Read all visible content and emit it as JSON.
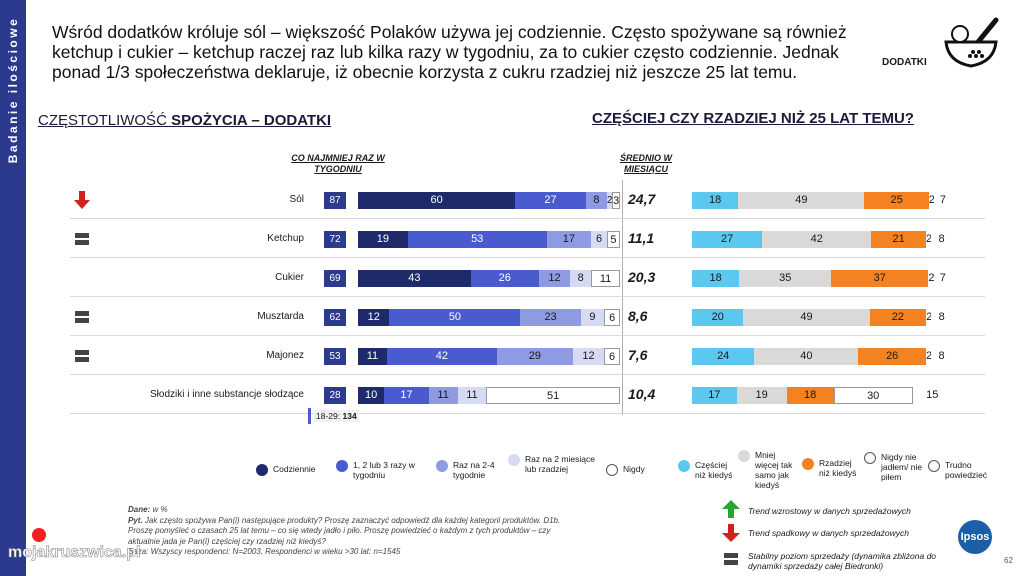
{
  "sidebar": {
    "label": "Badanie ilościowe"
  },
  "headline": "Wśród dodatków króluje sól – większość Polaków używa jej codziennie. Często spożywane są również ketchup i cukier – ketchup raczej raz lub kilka razy w tygodniu, za to cukier często codziennie. Jednak ponad 1/3 społeczeństwa deklaruje, iż obecnie korzysta z cukru rzadziej niż jeszcze 25 lat temu.",
  "category_badge": "DODATKI",
  "left_title_light": "CZĘSTOTLIWOŚĆ ",
  "left_title_bold": "SPOŻYCIA – DODATKI",
  "right_title": "CZĘŚCIEJ CZY RZADZIEJ NIŻ 25 LAT TEMU?",
  "col_weekly": "CO NAJMNIEJ RAZ W TYGODNIU",
  "col_avg": "ŚREDNIO W MIESIĄCU",
  "subgroup_label": "18-29:",
  "subgroup_value": "134",
  "colors": {
    "daily": "#1f2a6b",
    "weekly13": "#4a5bd0",
    "weekly24": "#8e9ae2",
    "monthly2": "#d6daf3",
    "never": "#ffffff",
    "more": "#5bc8f0",
    "same": "#d9d9d9",
    "less": "#f58220",
    "never_ate": "#ffffff",
    "hard": "#ffffff",
    "sidebar": "#2b3a8c",
    "trend_up": "#2aa336",
    "trend_down": "#d0211c",
    "trend_stable": "#444444"
  },
  "chart_data": [
    {
      "type": "bar",
      "stacked": true,
      "orientation": "horizontal",
      "title": "CZĘSTOTLIWOŚĆ SPOŻYCIA – DODATKI",
      "categories": [
        "Sól",
        "Ketchup",
        "Cukier",
        "Musztarda",
        "Majonez",
        "Słodziki i inne substancje słodzące"
      ],
      "trend": [
        "down",
        "stable",
        "",
        "stable",
        "stable",
        ""
      ],
      "at_least_weekly": [
        87,
        72,
        69,
        62,
        53,
        28
      ],
      "avg_per_month": [
        "24,7",
        "11,1",
        "20,3",
        "8,6",
        "7,6",
        "10,4"
      ],
      "series": [
        {
          "name": "Codziennie",
          "values": [
            60,
            19,
            43,
            12,
            11,
            10
          ]
        },
        {
          "name": "1, 2 lub 3 razy w tygodniu",
          "values": [
            27,
            53,
            26,
            50,
            42,
            17
          ]
        },
        {
          "name": "Raz na 2-4 tygodnie",
          "values": [
            8,
            17,
            12,
            23,
            29,
            11
          ]
        },
        {
          "name": "Raz na 2 miesiące lub rzadziej",
          "values": [
            2,
            6,
            8,
            9,
            12,
            11
          ]
        },
        {
          "name": "Nigdy",
          "values": [
            3,
            5,
            11,
            6,
            6,
            51
          ]
        }
      ],
      "labels": [
        [
          "60",
          "27",
          "8",
          "2",
          "3"
        ],
        [
          "19",
          "53",
          "17",
          "6",
          "5"
        ],
        [
          "43",
          "26",
          "12",
          "8",
          "11"
        ],
        [
          "12",
          "50",
          "23",
          "9",
          "6"
        ],
        [
          "11",
          "42",
          "29",
          "12",
          "6"
        ],
        [
          "10",
          "17",
          "11",
          "11",
          "51"
        ]
      ]
    },
    {
      "type": "bar",
      "stacked": true,
      "orientation": "horizontal",
      "title": "CZĘŚCIEJ CZY RZADZIEJ NIŻ 25 LAT TEMU?",
      "categories": [
        "Sól",
        "Ketchup",
        "Cukier",
        "Musztarda",
        "Majonez",
        "Słodziki i inne substancje słodzące"
      ],
      "series": [
        {
          "name": "Częściej niż kiedyś",
          "values": [
            18,
            27,
            18,
            20,
            24,
            17
          ]
        },
        {
          "name": "Mniej więcej tak samo jak kiedyś",
          "values": [
            49,
            42,
            35,
            49,
            40,
            19
          ]
        },
        {
          "name": "Rzadziej niż kiedyś",
          "values": [
            25,
            21,
            37,
            22,
            26,
            18
          ]
        },
        {
          "name": "Nigdy nie jadłem/ nie piłem",
          "values": [
            2,
            2,
            2,
            2,
            2,
            30
          ]
        },
        {
          "name": "Trudno powiedzieć",
          "values": [
            7,
            8,
            7,
            8,
            8,
            15
          ]
        }
      ]
    }
  ],
  "legend_left": [
    "Codziennie",
    "1, 2 lub 3 razy w tygodniu",
    "Raz na 2-4 tygodnie",
    "Raz na 2 miesiące lub rzadziej",
    "Nigdy"
  ],
  "legend_right": [
    "Częściej niż kiedyś",
    "Mniej więcej tak samo jak kiedyś",
    "Rzadziej niż kiedyś",
    "Nigdy nie jadłem/ nie piłem",
    "Trudno powiedzieć"
  ],
  "notes": {
    "line1_b": "Dane:",
    "line1": " w %",
    "line2_b": "Pyt.",
    "line2": " Jak często spożywa Pan(i) następujące produkty? Proszę zaznaczyć odpowiedź dla każdej kategorii produktów. D1b.",
    "line3": "Proszę pomyśleć o czasach 25 lat temu – co się wtedy jadło i piło. Proszę powiedzieć o każdym z tych produktów – czy",
    "line4": "aktualnie jada je Pan(i) częściej czy rzadziej niż kiedyś?",
    "line5": "Baza: Wszyscy respondenci: N=2003, Respondenci w wieku >30 lat: n=1545"
  },
  "trend_legend": {
    "up": "Trend wzrostowy w danych sprzedażowych",
    "down": "Trend spadkowy w danych sprzedażowych",
    "stable": "Stabilny poziom sprzedaży (dynamika zbliżona do dynamiki sprzedaży całej Biedronki)"
  },
  "logo": "Ipsos",
  "page_number": "62",
  "watermark": "mojakruszwica.pl"
}
